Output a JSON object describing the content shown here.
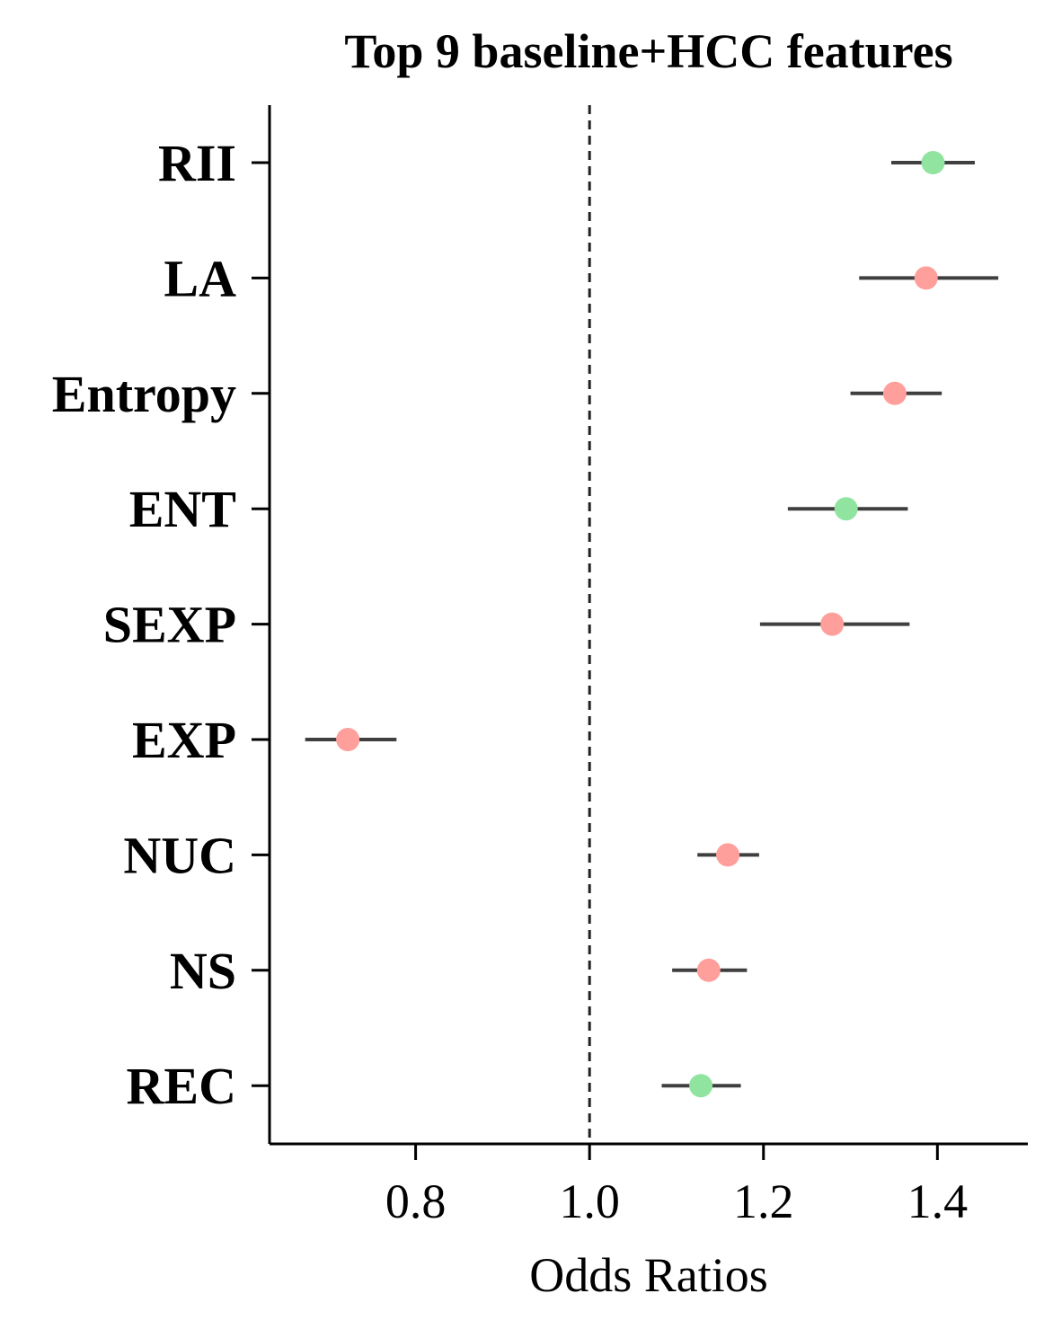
{
  "chart_data": {
    "type": "scatter",
    "title": "Top 9 baseline+HCC features",
    "xlabel": "Odds Ratios",
    "ylabel": "",
    "xlim": [
      0.632,
      1.504
    ],
    "xticks": [
      0.8,
      1.0,
      1.2,
      1.4
    ],
    "xtick_labels": [
      "0.8",
      "1.0",
      "1.2",
      "1.4"
    ],
    "reference_line": 1.0,
    "grid": false,
    "colors": {
      "positive_class": "#90e4a0",
      "negative_class": "#ff9f9b",
      "error_bar": "#3f3f3f",
      "reference": "#222222"
    },
    "features": [
      {
        "name": "RII",
        "value": 1.395,
        "ci_low": 1.347,
        "ci_high": 1.443,
        "color": "#90e4a0"
      },
      {
        "name": "LA",
        "value": 1.387,
        "ci_low": 1.31,
        "ci_high": 1.47,
        "color": "#ff9f9b"
      },
      {
        "name": "Entropy",
        "value": 1.351,
        "ci_low": 1.3,
        "ci_high": 1.405,
        "color": "#ff9f9b"
      },
      {
        "name": "ENT",
        "value": 1.295,
        "ci_low": 1.228,
        "ci_high": 1.366,
        "color": "#90e4a0"
      },
      {
        "name": "SEXP",
        "value": 1.279,
        "ci_low": 1.196,
        "ci_high": 1.368,
        "color": "#ff9f9b"
      },
      {
        "name": "EXP",
        "value": 0.722,
        "ci_low": 0.673,
        "ci_high": 0.778,
        "color": "#ff9f9b"
      },
      {
        "name": "NUC",
        "value": 1.159,
        "ci_low": 1.124,
        "ci_high": 1.195,
        "color": "#ff9f9b"
      },
      {
        "name": "NS",
        "value": 1.137,
        "ci_low": 1.095,
        "ci_high": 1.181,
        "color": "#ff9f9b"
      },
      {
        "name": "REC",
        "value": 1.128,
        "ci_low": 1.083,
        "ci_high": 1.174,
        "color": "#90e4a0"
      }
    ]
  }
}
